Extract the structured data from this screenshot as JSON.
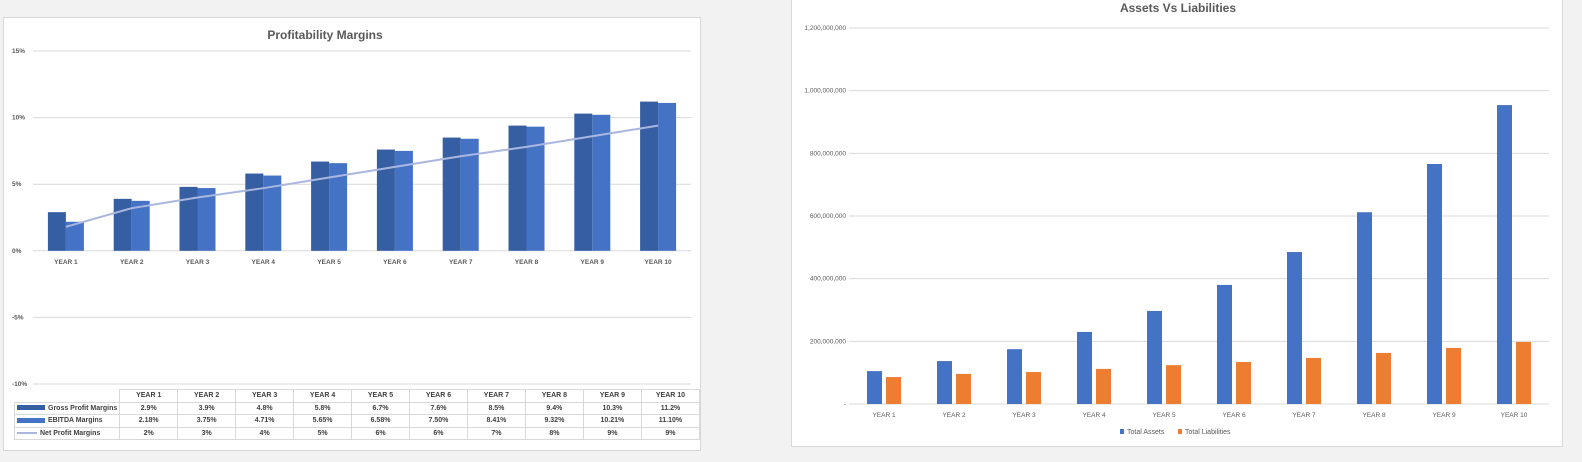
{
  "chart_data": [
    {
      "type": "bar+line",
      "title": "Profitability Margins",
      "categories": [
        "YEAR 1",
        "YEAR 2",
        "YEAR 3",
        "YEAR 4",
        "YEAR 5",
        "YEAR 6",
        "YEAR 7",
        "YEAR 8",
        "YEAR 9",
        "YEAR 10"
      ],
      "ylim": [
        -10,
        15
      ],
      "yticks": [
        "15%",
        "10%",
        "5%",
        "0%",
        "-5%",
        "-10%"
      ],
      "ytick_values": [
        15,
        10,
        5,
        0,
        -5,
        -10
      ],
      "grid": true,
      "legend": "data-table",
      "series": [
        {
          "name": "Gross Profit Margins",
          "kind": "bar",
          "color": "#365ea2",
          "values": [
            2.9,
            3.9,
            4.8,
            5.8,
            6.7,
            7.6,
            8.5,
            9.4,
            10.3,
            11.2
          ],
          "labels": [
            "2.9%",
            "3.9%",
            "4.8%",
            "5.8%",
            "6.7%",
            "7.6%",
            "8.5%",
            "9.4%",
            "10.3%",
            "11.2%"
          ]
        },
        {
          "name": "EBITDA Margins",
          "kind": "bar",
          "color": "#4472c4",
          "values": [
            2.18,
            3.75,
            4.71,
            5.65,
            6.58,
            7.5,
            8.41,
            9.32,
            10.21,
            11.1
          ],
          "labels": [
            "2.18%",
            "3.75%",
            "4.71%",
            "5.65%",
            "6.58%",
            "7.50%",
            "8.41%",
            "9.32%",
            "10.21%",
            "11.10%"
          ]
        },
        {
          "name": "Net Profit Margins",
          "kind": "line",
          "color": "#a9b7e0",
          "values": [
            1.8,
            3.2,
            4.0,
            4.7,
            5.5,
            6.3,
            7.1,
            7.8,
            8.6,
            9.4
          ],
          "labels": [
            "2%",
            "3%",
            "4%",
            "5%",
            "6%",
            "6%",
            "7%",
            "8%",
            "9%",
            "9%"
          ]
        }
      ]
    },
    {
      "type": "bar",
      "title": "Assets Vs Liabilities",
      "categories": [
        "YEAR 1",
        "YEAR 2",
        "YEAR 3",
        "YEAR 4",
        "YEAR 5",
        "YEAR 6",
        "YEAR 7",
        "YEAR 8",
        "YEAR 9",
        "YEAR 10"
      ],
      "ylim": [
        0,
        1200000000
      ],
      "yticks": [
        "1,200,000,000",
        "1,000,000,000",
        "800,000,000",
        "600,000,000",
        "400,000,000",
        "200,000,000",
        "-"
      ],
      "ytick_values": [
        1200000000,
        1000000000,
        800000000,
        600000000,
        400000000,
        200000000,
        0
      ],
      "grid": true,
      "legend": "bottom",
      "series": [
        {
          "name": "Total Assets",
          "color": "#4472c4",
          "values": [
            105000000,
            137000000,
            175000000,
            230000000,
            297000000,
            380000000,
            485000000,
            612000000,
            766000000,
            954000000
          ]
        },
        {
          "name": "Total Liabilities",
          "color": "#ed7d31",
          "values": [
            86000000,
            96000000,
            102000000,
            112000000,
            124000000,
            134000000,
            147000000,
            163000000,
            179000000,
            198000000
          ]
        }
      ]
    }
  ]
}
